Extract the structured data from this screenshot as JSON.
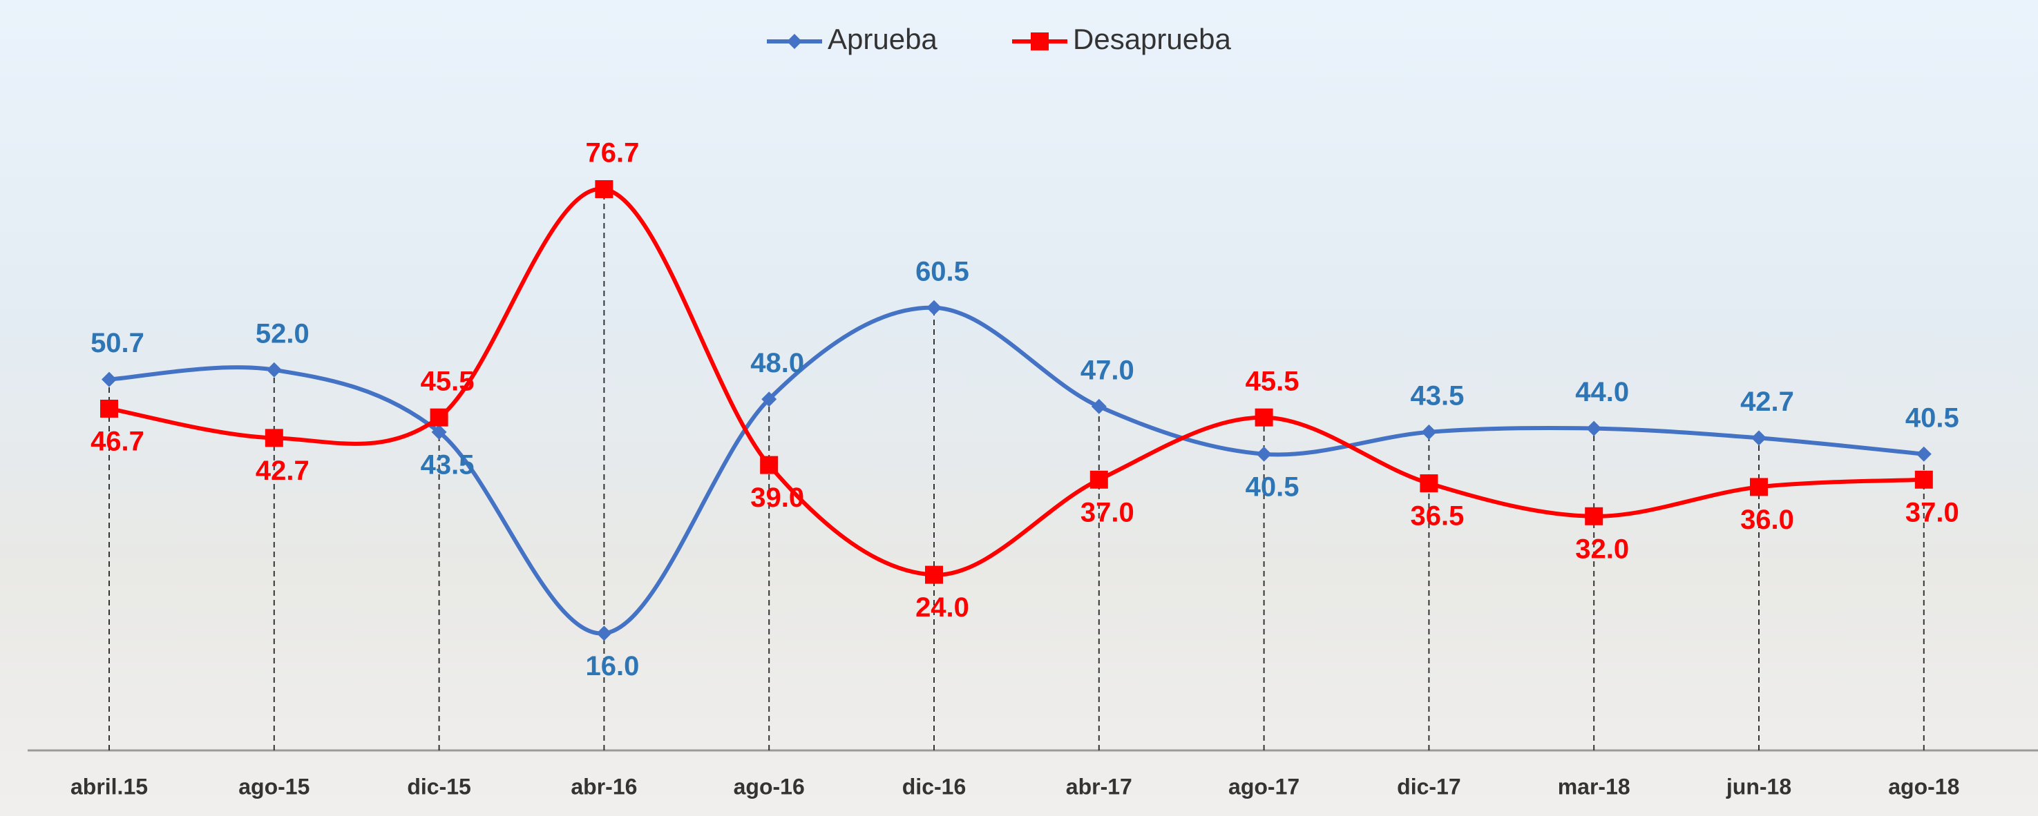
{
  "chart_data": {
    "type": "line",
    "categories": [
      "abril.15",
      "ago-15",
      "dic-15",
      "abr-16",
      "ago-16",
      "dic-16",
      "abr-17",
      "ago-17",
      "dic-17",
      "mar-18",
      "jun-18",
      "ago-18"
    ],
    "series": [
      {
        "name": "Aprueba",
        "color": "#4472c4",
        "label_color": "#2e75b6",
        "marker": "diamond",
        "values": [
          50.7,
          52.0,
          43.5,
          16.0,
          48.0,
          60.5,
          47.0,
          40.5,
          43.5,
          44.0,
          42.7,
          40.5
        ],
        "value_labels": [
          "50.7",
          "52.0",
          "43.5",
          "16.0",
          "48.0",
          "60.5",
          "47.0",
          "40.5",
          "43.5",
          "44.0",
          "42.7",
          "40.5"
        ]
      },
      {
        "name": "Desaprueba",
        "color": "#ff0000",
        "label_color": "#ff0000",
        "marker": "square",
        "values": [
          46.7,
          42.7,
          45.5,
          76.7,
          39.0,
          24.0,
          37.0,
          45.5,
          36.5,
          32.0,
          36.0,
          37.0
        ],
        "value_labels": [
          "46.7",
          "42.7",
          "45.5",
          "76.7",
          "39.0",
          "24.0",
          "37.0",
          "45.5",
          "36.5",
          "32.0",
          "36.0",
          "37.0"
        ]
      }
    ],
    "smooth": true,
    "legend": "top"
  }
}
